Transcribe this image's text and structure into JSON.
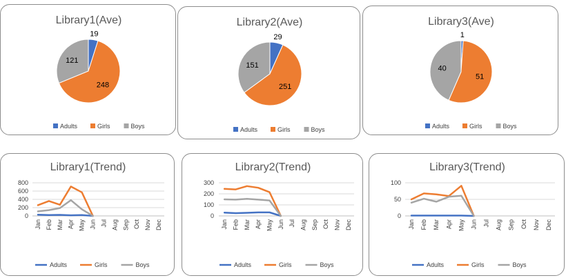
{
  "colors": {
    "adults": "#4472c4",
    "girls": "#ed7d31",
    "boys": "#a5a5a5"
  },
  "chart_data": [
    {
      "type": "pie",
      "title": "Library1(Ave)",
      "categories": [
        "Adults",
        "Girls",
        "Boys"
      ],
      "values": [
        19,
        248,
        121
      ],
      "legend": "bottom"
    },
    {
      "type": "pie",
      "title": "Library2(Ave)",
      "categories": [
        "Adults",
        "Girls",
        "Boys"
      ],
      "values": [
        29,
        251,
        151
      ],
      "legend": "bottom"
    },
    {
      "type": "pie",
      "title": "Library3(Ave)",
      "categories": [
        "Adults",
        "Girls",
        "Boys"
      ],
      "values": [
        1,
        51,
        40
      ],
      "legend": "bottom"
    },
    {
      "type": "line",
      "title": "Library1(Trend)",
      "x": [
        "Jan",
        "Feb",
        "Mar",
        "Apr",
        "May",
        "Jun",
        "Jul",
        "Aug",
        "Sep",
        "Oct",
        "Nov",
        "Dec"
      ],
      "yticks": [
        "0",
        "200",
        "400",
        "600",
        "800"
      ],
      "ylim": [
        0,
        800
      ],
      "grid": true,
      "legend": "bottom",
      "series": [
        {
          "name": "Adults",
          "values": [
            30,
            20,
            25,
            15,
            20,
            0,
            null,
            null,
            null,
            null,
            null,
            0
          ]
        },
        {
          "name": "Girls",
          "values": [
            260,
            360,
            270,
            710,
            570,
            0,
            null,
            null,
            null,
            null,
            null,
            0
          ]
        },
        {
          "name": "Boys",
          "values": [
            110,
            140,
            190,
            380,
            160,
            0,
            null,
            null,
            null,
            null,
            null,
            0
          ]
        }
      ]
    },
    {
      "type": "line",
      "title": "Library2(Trend)",
      "x": [
        "Jan",
        "Feb",
        "Mar",
        "Apr",
        "May",
        "Jun",
        "Jul",
        "Aug",
        "Sep",
        "Oct",
        "Nov",
        "Dec"
      ],
      "yticks": [
        "0",
        "100",
        "200",
        "300"
      ],
      "ylim": [
        0,
        300
      ],
      "grid": true,
      "legend": "bottom",
      "series": [
        {
          "name": "Adults",
          "values": [
            30,
            25,
            28,
            32,
            32,
            0,
            null,
            null,
            null,
            null,
            null,
            0
          ]
        },
        {
          "name": "Girls",
          "values": [
            245,
            240,
            270,
            255,
            215,
            0,
            null,
            null,
            null,
            null,
            null,
            0
          ]
        },
        {
          "name": "Boys",
          "values": [
            150,
            148,
            155,
            148,
            140,
            0,
            null,
            null,
            null,
            null,
            null,
            0
          ]
        }
      ]
    },
    {
      "type": "line",
      "title": "Library3(Trend)",
      "x": [
        "Jan",
        "Feb",
        "Mar",
        "Apr",
        "May",
        "Jun",
        "Jul",
        "Aug",
        "Sep",
        "Oct",
        "Nov",
        "Dec"
      ],
      "yticks": [
        "0",
        "50",
        "100"
      ],
      "ylim": [
        0,
        100
      ],
      "grid": true,
      "legend": "bottom",
      "series": [
        {
          "name": "Adults",
          "values": [
            1,
            1,
            1,
            1,
            1,
            0,
            null,
            null,
            null,
            null,
            null,
            0
          ]
        },
        {
          "name": "Girls",
          "values": [
            50,
            68,
            65,
            60,
            91,
            0,
            null,
            null,
            null,
            null,
            null,
            0
          ]
        },
        {
          "name": "Boys",
          "values": [
            40,
            52,
            43,
            58,
            61,
            0,
            null,
            null,
            null,
            null,
            null,
            0
          ]
        }
      ]
    }
  ]
}
